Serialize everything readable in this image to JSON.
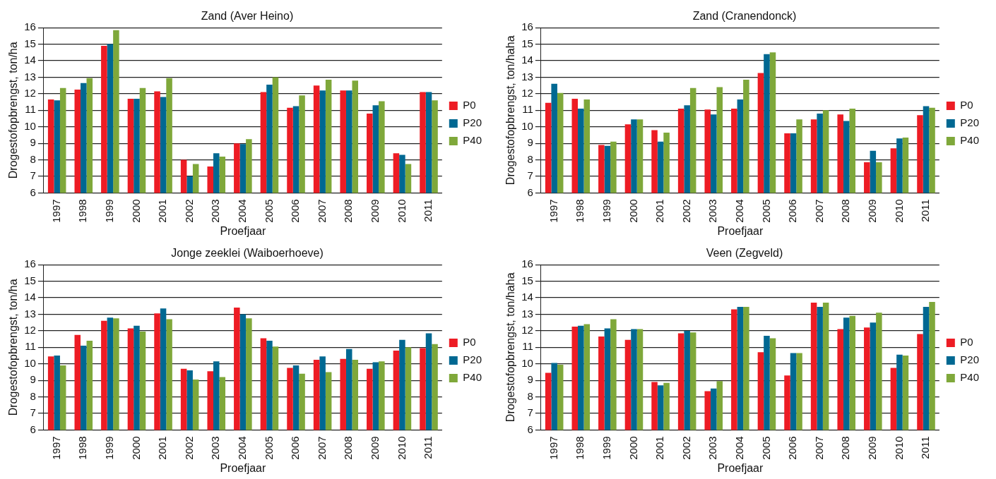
{
  "chart_data": [
    {
      "type": "bar",
      "title": "Zand (Aver Heino)",
      "xlabel": "Proefjaar",
      "ylabel": "Drogestofopbrengst, ton/ha",
      "categories": [
        "1997",
        "1998",
        "1999",
        "2000",
        "2001",
        "2002",
        "2003",
        "2004",
        "2005",
        "2006",
        "2007",
        "2008",
        "2009",
        "2010",
        "2011"
      ],
      "ylim": [
        6,
        16
      ],
      "yticks": [
        6,
        7,
        8,
        9,
        10,
        11,
        12,
        13,
        14,
        15,
        16
      ],
      "grid": "y",
      "legend": "right",
      "series": [
        {
          "name": "P0",
          "color": "#ed1c24",
          "values": [
            11.65,
            12.25,
            14.9,
            11.7,
            12.15,
            8.0,
            7.6,
            9.0,
            12.1,
            11.15,
            12.5,
            12.2,
            10.8,
            8.4,
            12.1
          ]
        },
        {
          "name": "P20",
          "color": "#006892",
          "values": [
            11.6,
            12.65,
            15.0,
            11.7,
            11.8,
            7.0,
            8.4,
            8.95,
            12.55,
            11.25,
            12.2,
            12.2,
            11.3,
            8.3,
            12.1
          ]
        },
        {
          "name": "P40",
          "color": "#7fa83a",
          "values": [
            12.35,
            12.95,
            15.85,
            12.35,
            12.95,
            7.75,
            8.2,
            9.25,
            13.0,
            11.9,
            12.85,
            12.8,
            11.55,
            7.75,
            11.6
          ]
        }
      ]
    },
    {
      "type": "bar",
      "title": "Zand (Cranendonck)",
      "xlabel": "Proefjaar",
      "ylabel": "Drogestofopbrengst, ton/haha",
      "categories": [
        "1997",
        "1998",
        "1999",
        "2000",
        "2001",
        "2002",
        "2003",
        "2004",
        "2005",
        "2006",
        "2007",
        "2008",
        "2009",
        "2010",
        "2011"
      ],
      "ylim": [
        6,
        16
      ],
      "yticks": [
        6,
        7,
        8,
        9,
        10,
        11,
        12,
        13,
        14,
        15,
        16
      ],
      "grid": "y",
      "legend": "right",
      "series": [
        {
          "name": "P0",
          "color": "#ed1c24",
          "values": [
            11.45,
            11.7,
            8.9,
            10.15,
            9.8,
            11.1,
            11.05,
            11.1,
            13.25,
            9.6,
            10.45,
            10.75,
            7.85,
            8.7,
            10.7
          ]
        },
        {
          "name": "P20",
          "color": "#006892",
          "values": [
            12.6,
            11.1,
            8.85,
            10.45,
            9.1,
            11.3,
            10.75,
            11.65,
            14.4,
            9.6,
            10.8,
            10.35,
            8.55,
            9.3,
            11.25
          ]
        },
        {
          "name": "P40",
          "color": "#7fa83a",
          "values": [
            12.05,
            11.65,
            9.1,
            10.45,
            9.65,
            12.35,
            12.4,
            12.85,
            14.5,
            10.45,
            11.0,
            11.1,
            7.85,
            9.35,
            11.15
          ]
        }
      ]
    },
    {
      "type": "bar",
      "title": "Jonge zeeklei (Waiboerhoeve)",
      "xlabel": "Proefjaar",
      "ylabel": "Drogestofopbrengst, ton/ha",
      "categories": [
        "1997",
        "1998",
        "1999",
        "2000",
        "2001",
        "2002",
        "2003",
        "2004",
        "2005",
        "2006",
        "2007",
        "2008",
        "2009",
        "2010",
        "2011"
      ],
      "ylim": [
        6,
        16
      ],
      "yticks": [
        6,
        7,
        8,
        9,
        10,
        11,
        12,
        13,
        14,
        15,
        16
      ],
      "grid": "y",
      "legend": "right",
      "series": [
        {
          "name": "P0",
          "color": "#ed1c24",
          "values": [
            10.45,
            11.75,
            12.6,
            12.15,
            13.05,
            9.7,
            9.55,
            13.4,
            11.55,
            9.75,
            10.25,
            10.3,
            9.7,
            10.8,
            10.95
          ]
        },
        {
          "name": "P20",
          "color": "#006892",
          "values": [
            10.5,
            11.1,
            12.8,
            12.3,
            13.35,
            9.6,
            10.15,
            13.0,
            11.4,
            9.9,
            10.45,
            10.9,
            10.1,
            11.45,
            11.85
          ]
        },
        {
          "name": "P40",
          "color": "#7fa83a",
          "values": [
            9.9,
            11.4,
            12.75,
            11.95,
            12.7,
            9.05,
            9.2,
            12.75,
            11.05,
            9.4,
            9.5,
            10.25,
            10.15,
            11.0,
            11.2
          ]
        }
      ]
    },
    {
      "type": "bar",
      "title": "Veen (Zegveld)",
      "xlabel": "Proefjaar",
      "ylabel": "Drogestofopbrengst, ton/haha",
      "categories": [
        "1997",
        "1998",
        "1999",
        "2000",
        "2001",
        "2002",
        "2003",
        "2004",
        "2005",
        "2006",
        "2007",
        "2008",
        "2009",
        "2010",
        "2011"
      ],
      "ylim": [
        6,
        16
      ],
      "yticks": [
        6,
        7,
        8,
        9,
        10,
        11,
        12,
        13,
        14,
        15,
        16
      ],
      "grid": "y",
      "legend": "right",
      "series": [
        {
          "name": "P0",
          "color": "#ed1c24",
          "values": [
            9.45,
            12.25,
            11.65,
            11.45,
            8.9,
            11.85,
            8.35,
            13.3,
            10.7,
            9.3,
            13.7,
            12.1,
            12.2,
            9.75,
            11.8
          ]
        },
        {
          "name": "P20",
          "color": "#006892",
          "values": [
            10.05,
            12.3,
            12.15,
            12.1,
            8.7,
            12.0,
            8.5,
            13.45,
            11.7,
            10.65,
            13.45,
            12.8,
            12.5,
            10.55,
            13.45
          ]
        },
        {
          "name": "P40",
          "color": "#7fa83a",
          "values": [
            9.95,
            12.4,
            12.7,
            12.1,
            8.85,
            11.9,
            8.95,
            13.45,
            11.55,
            10.65,
            13.7,
            12.9,
            13.1,
            10.5,
            13.75
          ]
        }
      ]
    }
  ]
}
